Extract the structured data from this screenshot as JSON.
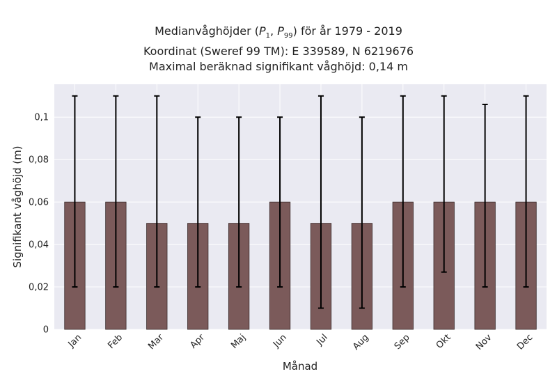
{
  "chart_data": {
    "type": "bar",
    "title_lines": [
      "Medianvåghöjder (P1, P99) för år 1979 - 2019",
      "Koordinat (Sweref 99 TM): E 339589, N 6219676",
      "Maximal beräknad signifikant våghöjd: 0,14 m"
    ],
    "title_p1_sub": "1",
    "title_p99_sub": "99",
    "xlabel": "Månad",
    "ylabel": "Signifikant våghöjd (m)",
    "categories": [
      "Jan",
      "Feb",
      "Mar",
      "Apr",
      "Maj",
      "Jun",
      "Jul",
      "Aug",
      "Sep",
      "Okt",
      "Nov",
      "Dec"
    ],
    "values": [
      0.06,
      0.06,
      0.05,
      0.05,
      0.05,
      0.06,
      0.05,
      0.05,
      0.06,
      0.06,
      0.06,
      0.06
    ],
    "p1": [
      0.02,
      0.02,
      0.02,
      0.02,
      0.02,
      0.02,
      0.01,
      0.01,
      0.02,
      0.027,
      0.02,
      0.02
    ],
    "p99": [
      0.11,
      0.11,
      0.11,
      0.1,
      0.1,
      0.1,
      0.11,
      0.1,
      0.11,
      0.11,
      0.106,
      0.11
    ],
    "yticks": [
      0,
      0.02,
      0.04,
      0.06,
      0.08,
      0.1
    ],
    "ytick_labels": [
      "0",
      "0,02",
      "0,04",
      "0,06",
      "0,08",
      "0,1"
    ],
    "ylim": [
      0,
      0.1155
    ],
    "grid": true,
    "colors": {
      "bar": "#7b5a5a",
      "bar_edge": "#3a2b2b",
      "error": "#000000",
      "plot_bg": "#eaeaf2",
      "grid": "#ffffff"
    }
  }
}
